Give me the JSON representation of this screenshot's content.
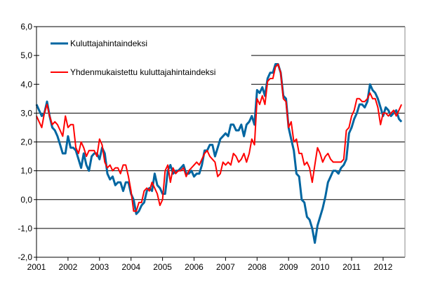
{
  "chart_data": {
    "type": "line",
    "title": "",
    "xlabel": "",
    "ylabel": "",
    "ylim": [
      -2.0,
      6.0
    ],
    "yticks": [
      "-2,0",
      "-1,0",
      "0,0",
      "1,0",
      "2,0",
      "3,0",
      "4,0",
      "5,0",
      "6,0"
    ],
    "xticks": [
      "2001",
      "2002",
      "2003",
      "2004",
      "2005",
      "2006",
      "2007",
      "2008",
      "2009",
      "2010",
      "2011",
      "2012"
    ],
    "x_start": "2001-01",
    "x_end": "2012-08",
    "frequency": "monthly",
    "grid": "horizontal",
    "legend_placement": "top-left",
    "series": [
      {
        "name": "Kuluttajahintaindeksi",
        "color": "#0066A1",
        "values": [
          3.3,
          3.1,
          2.9,
          3.0,
          3.4,
          2.9,
          2.5,
          2.4,
          2.2,
          1.9,
          1.6,
          1.6,
          2.2,
          1.8,
          1.8,
          1.7,
          1.4,
          1.1,
          1.6,
          1.2,
          1.0,
          1.5,
          1.6,
          1.6,
          1.4,
          1.8,
          1.6,
          0.9,
          0.7,
          0.8,
          0.5,
          0.6,
          0.6,
          0.3,
          0.6,
          0.6,
          0.2,
          0.0,
          -0.5,
          -0.4,
          -0.2,
          -0.1,
          0.3,
          0.4,
          0.3,
          0.9,
          0.5,
          0.4,
          0.2,
          0.2,
          1.0,
          1.2,
          0.9,
          1.0,
          1.0,
          1.1,
          1.2,
          0.9,
          0.9,
          1.0,
          0.8,
          0.9,
          0.9,
          1.2,
          1.7,
          1.7,
          1.9,
          1.9,
          1.5,
          1.8,
          2.1,
          2.2,
          2.3,
          2.2,
          2.6,
          2.6,
          2.4,
          2.4,
          2.6,
          2.2,
          2.6,
          2.7,
          2.9,
          2.6,
          3.8,
          3.7,
          3.9,
          3.6,
          4.2,
          4.4,
          4.4,
          4.7,
          4.7,
          4.4,
          3.6,
          3.5,
          2.5,
          2.1,
          1.7,
          0.9,
          0.8,
          0.0,
          -0.1,
          -0.6,
          -0.7,
          -1.0,
          -1.5,
          -0.9,
          -0.6,
          -0.3,
          0.1,
          0.6,
          0.8,
          1.0,
          1.0,
          0.9,
          1.1,
          1.2,
          1.4,
          2.3,
          2.5,
          2.8,
          3.0,
          3.3,
          3.3,
          3.2,
          3.4,
          4.0,
          3.8,
          3.7,
          3.5,
          3.2,
          2.9,
          3.2,
          3.1,
          2.9,
          3.0,
          3.1,
          2.8,
          2.7
        ]
      },
      {
        "name": "Yhdenmukaistettu kuluttajahintaindeksi",
        "color": "#FF0000",
        "values": [
          2.9,
          2.7,
          2.5,
          3.0,
          3.3,
          2.9,
          2.6,
          2.7,
          2.6,
          2.4,
          2.2,
          2.9,
          2.5,
          2.6,
          2.6,
          1.8,
          1.6,
          2.0,
          1.8,
          1.5,
          1.7,
          1.7,
          1.7,
          1.5,
          2.1,
          1.9,
          1.3,
          1.1,
          1.2,
          1.0,
          1.1,
          1.1,
          0.9,
          1.2,
          1.2,
          0.8,
          0.3,
          -0.4,
          -0.4,
          -0.1,
          -0.1,
          0.3,
          0.4,
          0.3,
          0.6,
          0.4,
          0.2,
          -0.2,
          0.0,
          1.0,
          1.2,
          0.6,
          1.1,
          0.9,
          1.0,
          1.0,
          1.1,
          0.8,
          1.0,
          1.1,
          1.2,
          1.3,
          1.2,
          1.4,
          1.6,
          1.7,
          1.5,
          1.4,
          1.3,
          0.8,
          0.9,
          1.3,
          1.2,
          1.3,
          1.2,
          1.6,
          1.5,
          1.3,
          1.4,
          1.6,
          1.3,
          1.6,
          2.1,
          1.9,
          3.5,
          3.3,
          3.6,
          3.3,
          4.1,
          4.2,
          4.2,
          4.6,
          4.7,
          4.4,
          3.5,
          3.4,
          2.5,
          2.7,
          2.0,
          2.1,
          1.6,
          1.6,
          1.2,
          1.3,
          1.1,
          0.6,
          1.2,
          1.8,
          1.6,
          1.3,
          1.5,
          1.6,
          1.4,
          1.3,
          1.3,
          1.3,
          1.3,
          1.4,
          2.4,
          2.5,
          2.9,
          3.1,
          3.5,
          3.5,
          3.4,
          3.4,
          3.5,
          3.7,
          3.5,
          3.5,
          3.2,
          2.6,
          3.0,
          3.0,
          2.9,
          3.0,
          3.1,
          2.9,
          3.1,
          3.3
        ]
      }
    ]
  }
}
